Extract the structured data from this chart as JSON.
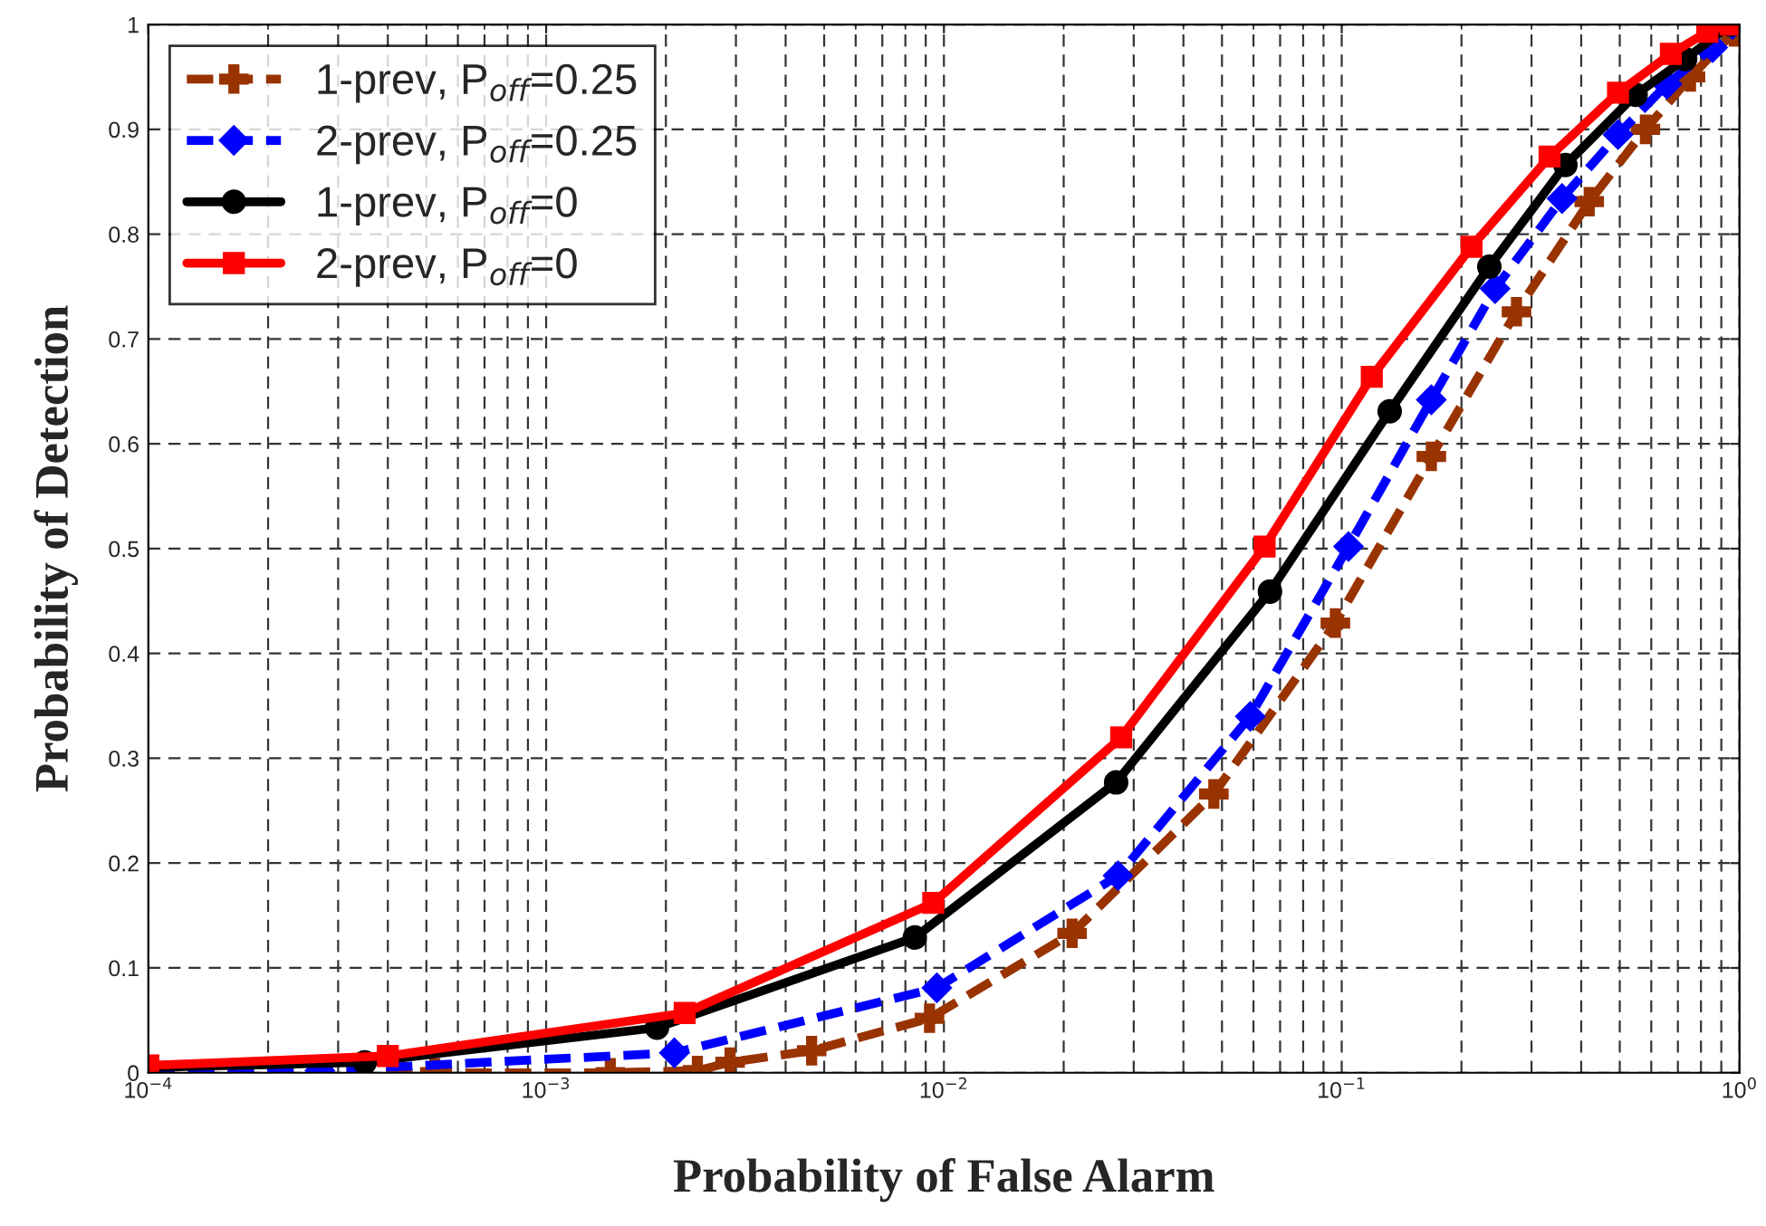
{
  "chart_data": {
    "type": "line",
    "xlabel": "Probability of False Alarm",
    "ylabel": "Probability of Detection",
    "log": "x",
    "grid": true,
    "legend": "top left",
    "xlim": [
      0.0001,
      1
    ],
    "ylim": [
      0,
      1
    ],
    "xticks": [
      {
        "value": 0.0001,
        "label": "10$^{−4}$"
      },
      {
        "value": 0.001,
        "label": "10$^{−3}$"
      },
      {
        "value": 0.01,
        "label": "10$^{−2}$"
      },
      {
        "value": 0.1,
        "label": "10$^{−1}$"
      },
      {
        "value": 1,
        "label": "10$^{0}$"
      }
    ],
    "yticks": [
      0,
      0.1,
      0.2,
      0.3,
      0.4,
      0.5,
      0.6,
      0.7,
      0.8,
      0.9,
      1
    ],
    "series": [
      {
        "name": "1-prev, P$_{off}$=0.25",
        "color": "#993300",
        "marker": "cross",
        "line_style": "dashed",
        "x": [
          0.0001,
          0.000525,
          0.00145,
          0.0024,
          0.0029,
          0.00465,
          0.0092,
          0.021,
          0.0477,
          0.0964,
          0.168,
          0.275,
          0.419,
          0.58,
          0.753,
          0.97
        ],
        "values": [
          0,
          0,
          0,
          0.002,
          0.01,
          0.021,
          0.052,
          0.133,
          0.266,
          0.429,
          0.588,
          0.726,
          0.831,
          0.9,
          0.95,
          0.993
        ]
      },
      {
        "name": "2-prev, P$_{off}$=0.25",
        "color": "#0000ff",
        "marker": "diamond",
        "line_style": "dashed",
        "x": [
          0.0001,
          0.00027,
          0.0021,
          0.0096,
          0.0274,
          0.0589,
          0.104,
          0.168,
          0.243,
          0.358,
          0.495,
          0.657,
          0.856,
          0.96
        ],
        "values": [
          0.003,
          0.002,
          0.019,
          0.081,
          0.188,
          0.34,
          0.502,
          0.642,
          0.748,
          0.834,
          0.895,
          0.943,
          0.978,
          1.0
        ]
      },
      {
        "name": "1-prev, P$_{off}$=0",
        "color": "#000000",
        "marker": "circle",
        "line_style": "solid",
        "x": [
          0.0001,
          0.00035,
          0.0019,
          0.00845,
          0.0271,
          0.066,
          0.132,
          0.235,
          0.365,
          0.548,
          0.73,
          0.95
        ],
        "values": [
          0.005,
          0.01,
          0.043,
          0.129,
          0.277,
          0.459,
          0.631,
          0.769,
          0.866,
          0.933,
          0.967,
          1.0
        ]
      },
      {
        "name": "2-prev, P$_{off}$=0",
        "color": "#ff0000",
        "marker": "square",
        "line_style": "solid",
        "x": [
          0.0001,
          0.0004,
          0.00223,
          0.0094,
          0.0279,
          0.064,
          0.119,
          0.212,
          0.333,
          0.495,
          0.672,
          0.83,
          0.95
        ],
        "values": [
          0.007,
          0.016,
          0.057,
          0.162,
          0.32,
          0.502,
          0.664,
          0.788,
          0.874,
          0.935,
          0.972,
          0.993,
          1.0
        ]
      }
    ]
  }
}
